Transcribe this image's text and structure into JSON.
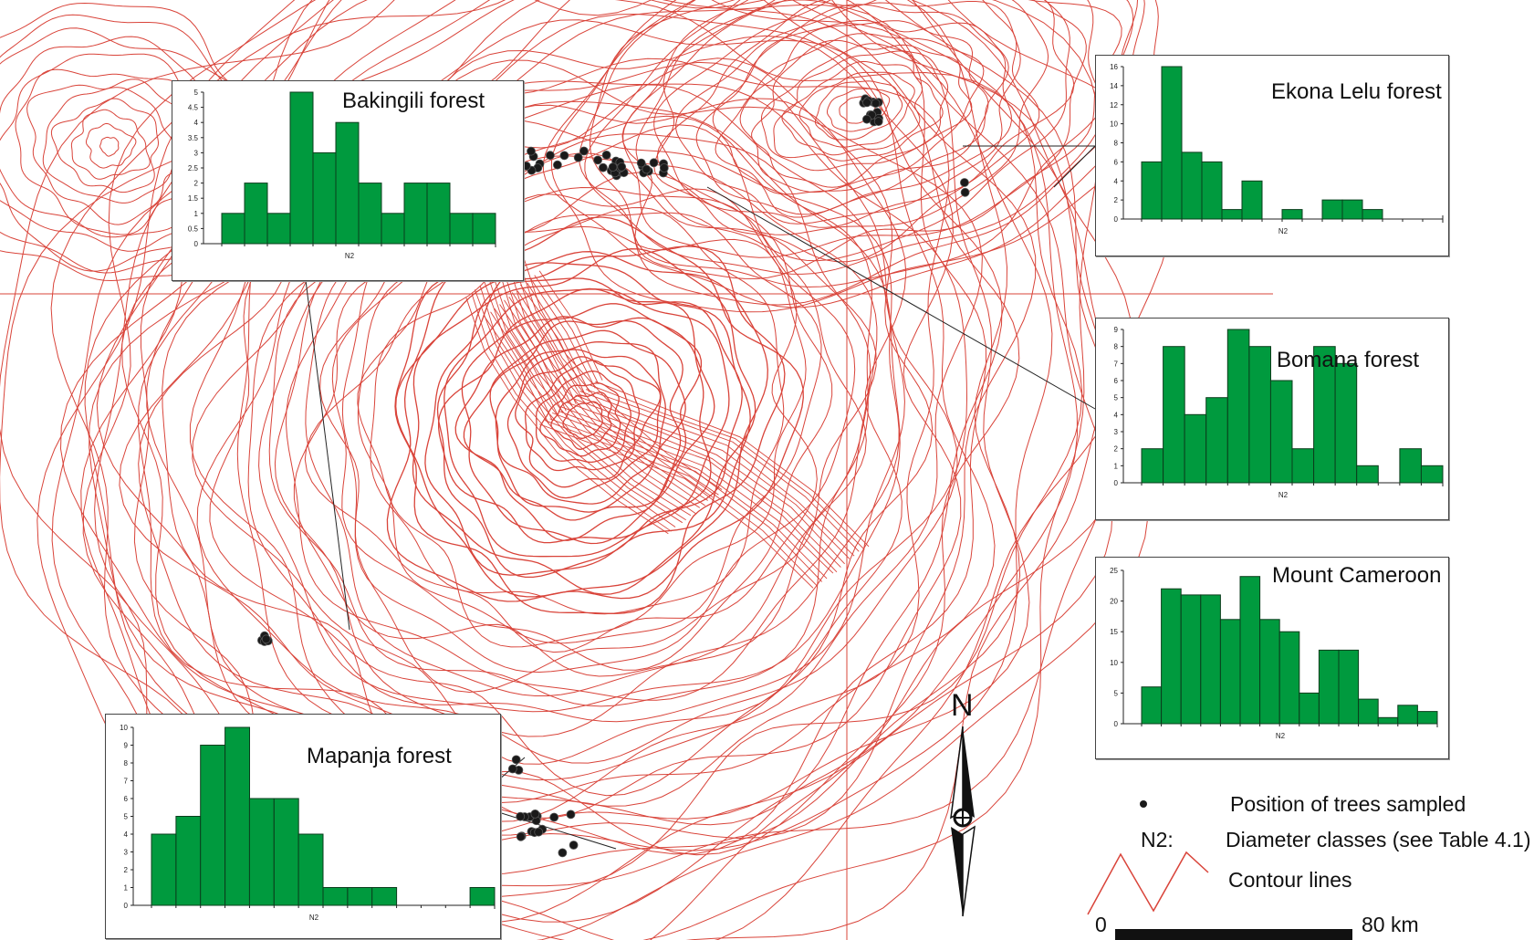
{
  "map": {
    "contour_color": "#d9443a",
    "tree_marker_color": "#1a1a1a"
  },
  "legend": {
    "trees_label": "Position of trees sampled",
    "n2_key": "N2:",
    "n2_desc": "Diameter classes (see Table 4.1)",
    "contour_label": "Contour lines",
    "scale_start": "0",
    "scale_end": "80 km",
    "north_label": "N"
  },
  "charts": [
    {
      "id": "bakingili",
      "title": "Bakingili forest",
      "xlabel": "N2",
      "yticks": [
        "0",
        "0.5",
        "1",
        "1.5",
        "2",
        "2.5",
        "3",
        "3.5",
        "4",
        "4.5",
        "5"
      ],
      "ymax": 5,
      "values": [
        1,
        2,
        1,
        5,
        3,
        4,
        2,
        1,
        2,
        2,
        1,
        1
      ]
    },
    {
      "id": "ekona",
      "title": "Ekona Lelu forest",
      "xlabel": "N2",
      "yticks": [
        "0",
        "2",
        "4",
        "6",
        "8",
        "10",
        "12",
        "14",
        "16"
      ],
      "ymax": 16,
      "values": [
        6,
        16,
        7,
        6,
        1,
        4,
        0,
        1,
        0,
        2,
        2,
        1,
        0,
        0,
        0
      ]
    },
    {
      "id": "bomana",
      "title": "Bomana forest",
      "xlabel": "N2",
      "yticks": [
        "0",
        "1",
        "2",
        "3",
        "4",
        "5",
        "6",
        "7",
        "8",
        "9"
      ],
      "ymax": 9,
      "values": [
        2,
        8,
        4,
        5,
        9,
        8,
        6,
        2,
        8,
        7,
        1,
        0,
        2,
        1
      ]
    },
    {
      "id": "cameroon",
      "title": "Mount Cameroon",
      "xlabel": "N2",
      "yticks": [
        "0",
        "5",
        "10",
        "15",
        "20",
        "25"
      ],
      "ymax": 25,
      "values": [
        6,
        22,
        21,
        21,
        17,
        24,
        17,
        15,
        5,
        12,
        12,
        4,
        1,
        3,
        2
      ]
    },
    {
      "id": "mapanja",
      "title": "Mapanja forest",
      "xlabel": "N2",
      "yticks": [
        "0",
        "1",
        "2",
        "3",
        "4",
        "5",
        "6",
        "7",
        "8",
        "9",
        "10"
      ],
      "ymax": 10,
      "values": [
        4,
        5,
        9,
        10,
        6,
        6,
        4,
        1,
        1,
        1,
        0,
        0,
        0,
        1
      ]
    }
  ],
  "chart_data": [
    {
      "type": "bar",
      "title": "Bakingili forest",
      "xlabel": "N2",
      "ylabel": "",
      "ylim": [
        0,
        5
      ],
      "values": [
        1,
        2,
        1,
        5,
        3,
        4,
        2,
        1,
        2,
        2,
        1,
        1
      ]
    },
    {
      "type": "bar",
      "title": "Ekona Lelu forest",
      "xlabel": "N2",
      "ylabel": "",
      "ylim": [
        0,
        16
      ],
      "values": [
        6,
        16,
        7,
        6,
        1,
        4,
        0,
        1,
        0,
        2,
        2,
        1,
        0,
        0,
        0
      ]
    },
    {
      "type": "bar",
      "title": "Bomana forest",
      "xlabel": "N2",
      "ylabel": "",
      "ylim": [
        0,
        9
      ],
      "values": [
        2,
        8,
        4,
        5,
        9,
        8,
        6,
        2,
        8,
        7,
        1,
        0,
        2,
        1
      ]
    },
    {
      "type": "bar",
      "title": "Mount Cameroon",
      "xlabel": "N2",
      "ylabel": "",
      "ylim": [
        0,
        25
      ],
      "values": [
        6,
        22,
        21,
        21,
        17,
        24,
        17,
        15,
        5,
        12,
        12,
        4,
        1,
        3,
        2
      ]
    },
    {
      "type": "bar",
      "title": "Mapanja forest",
      "xlabel": "N2",
      "ylabel": "",
      "ylim": [
        0,
        10
      ],
      "values": [
        4,
        5,
        9,
        10,
        6,
        6,
        4,
        1,
        1,
        1,
        0,
        0,
        0,
        1
      ]
    }
  ]
}
